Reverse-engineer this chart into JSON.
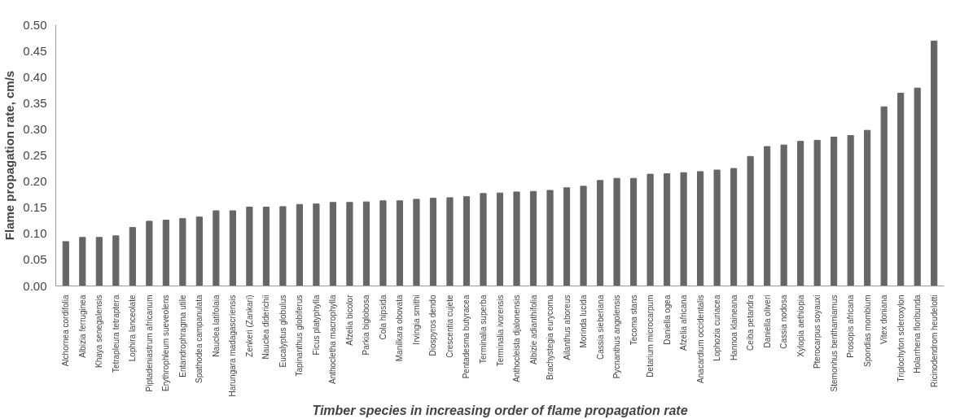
{
  "chart_data": {
    "type": "bar",
    "xlabel": "Timber species in increasing order of flame propagation rate",
    "ylabel": "Flame propagation rate, cm/s",
    "categories": [
      "Alchornea cordifolia",
      "Albizia ferruginea",
      "Khaya senegalensis",
      "Tetrapleura tetraptera",
      "Lophira lanceolate",
      "Piptadeniastrum africanum",
      "Erythrophleum sueveolens",
      "Entandrophragma utile",
      "Spathodea campanulata",
      "Nauclea latifolaia",
      "Harungara madagascriensis",
      "Zenkeri (Zankari)",
      "Nauclea diderichii",
      "Eucalyptus globulus",
      "Tapinanthus globiferus",
      "Ficus platyphylla",
      "Anthocletha macrophylla",
      "Afzelia bicolor",
      "Parkia biglobosa",
      "Cola hipsida",
      "Manilkara obovata",
      "Irvingia smithi",
      "Diospyros dendo",
      "Crescentia cujete",
      "Pentadesma butyracea",
      "Terminalia superba",
      "Terminalia ivorensis",
      "Anthocleista djalonensis",
      "Albizie adianthifolia",
      "Brachystegia eurycoma",
      "Ailanthus aboreus",
      "Morinda lucida",
      "Cassia sieberiana",
      "Pycnanthus angolensis",
      "Tecoma stans",
      "Detarium microcarpum",
      "Daniella ogea",
      "Afzelia africana",
      "Anacardium occidentalis",
      "Lophozia curiacea",
      "Hannoa klaineana",
      "Ceiba petandra",
      "Daniella oliveri",
      "Cassia nodosa",
      "Xylopia aethiopia",
      "Pterocarpus soyauxi",
      "Stemonhus benthamiamus",
      "Prosopis africana",
      "Spondias mombium",
      "Vitex doniana",
      "Triplochyton scleroxylon",
      "Holarrhena floribunda",
      "Ricinodendrom heudelotti"
    ],
    "values": [
      0.085,
      0.093,
      0.093,
      0.096,
      0.112,
      0.124,
      0.126,
      0.129,
      0.132,
      0.144,
      0.144,
      0.151,
      0.151,
      0.152,
      0.156,
      0.157,
      0.16,
      0.16,
      0.161,
      0.163,
      0.163,
      0.166,
      0.168,
      0.169,
      0.171,
      0.177,
      0.178,
      0.18,
      0.181,
      0.183,
      0.188,
      0.191,
      0.202,
      0.206,
      0.206,
      0.214,
      0.215,
      0.217,
      0.219,
      0.222,
      0.225,
      0.248,
      0.267,
      0.27,
      0.277,
      0.279,
      0.285,
      0.288,
      0.298,
      0.343,
      0.369,
      0.379,
      0.469
    ],
    "color": "#666666",
    "ylim": [
      0,
      0.5
    ],
    "yticks": [
      {
        "value": 0,
        "label": "0.00"
      },
      {
        "value": 0.05,
        "label": "0.05"
      },
      {
        "value": 0.1,
        "label": "0.10"
      },
      {
        "value": 0.15,
        "label": "0.15"
      },
      {
        "value": 0.2,
        "label": "0.20"
      },
      {
        "value": 0.25,
        "label": "0.25"
      },
      {
        "value": 0.3,
        "label": "0.30"
      },
      {
        "value": 0.35,
        "label": "0.35"
      },
      {
        "value": 0.4,
        "label": "0.40"
      },
      {
        "value": 0.45,
        "label": "0.45"
      },
      {
        "value": 0.5,
        "label": "0.50"
      }
    ],
    "grid": false
  }
}
